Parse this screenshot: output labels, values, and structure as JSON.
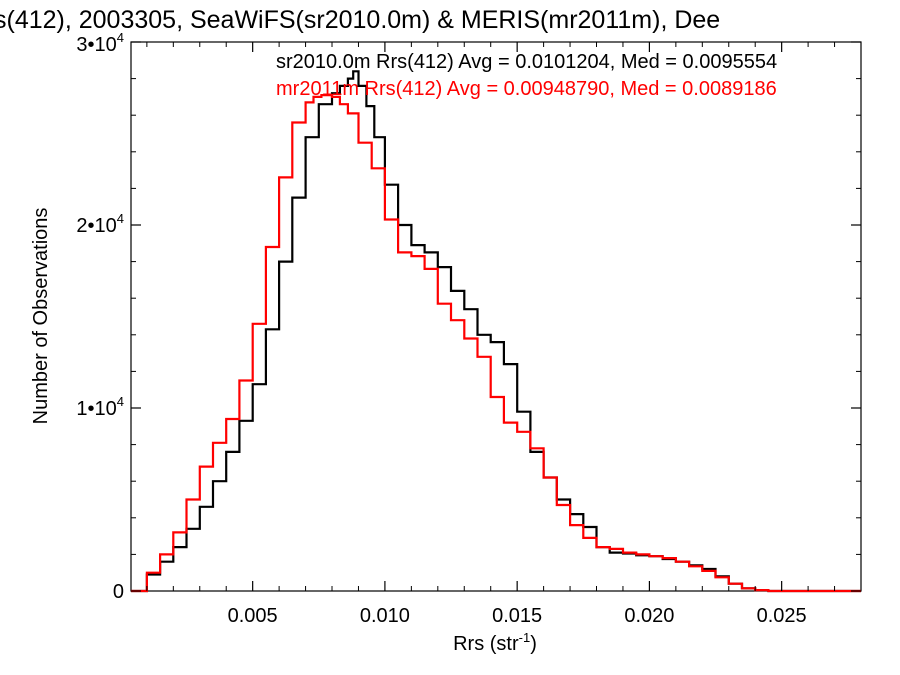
{
  "chart_data": {
    "type": "line",
    "title": "s(412), 2003305, SeaWiFS(sr2010.0m) & MERIS(mr2011m), Dee",
    "xlabel": "Rrs (str",
    "xlabel_sup": "-1",
    "xlabel_close": ")",
    "ylabel": "Number of Observations",
    "xlim": [
      0.0004,
      0.028
    ],
    "ylim": [
      0,
      30000
    ],
    "x_ticks": [
      {
        "value": 0.005,
        "label": "0.005"
      },
      {
        "value": 0.01,
        "label": "0.010"
      },
      {
        "value": 0.015,
        "label": "0.015"
      },
      {
        "value": 0.02,
        "label": "0.020"
      },
      {
        "value": 0.025,
        "label": "0.025"
      }
    ],
    "y_ticks": [
      {
        "value": 0,
        "mant": "0",
        "exp": ""
      },
      {
        "value": 10000,
        "mant": "1•10",
        "exp": "4"
      },
      {
        "value": 20000,
        "mant": "2•10",
        "exp": "4"
      },
      {
        "value": 30000,
        "mant": "3•10",
        "exp": "4"
      }
    ],
    "series": [
      {
        "name": "sr2010.0m",
        "legend": "sr2010.0m Rrs(412) Avg = 0.0101204, Med = 0.0095554",
        "color": "#000000",
        "x": [
          0.0004,
          0.001,
          0.0015,
          0.002,
          0.0025,
          0.003,
          0.0035,
          0.004,
          0.0045,
          0.005,
          0.0055,
          0.006,
          0.0065,
          0.007,
          0.0075,
          0.008,
          0.0083,
          0.0086,
          0.0088,
          0.009,
          0.0093,
          0.0096,
          0.01,
          0.0105,
          0.011,
          0.0115,
          0.012,
          0.0125,
          0.013,
          0.0135,
          0.014,
          0.0145,
          0.015,
          0.0155,
          0.016,
          0.0165,
          0.017,
          0.0175,
          0.018,
          0.0185,
          0.019,
          0.0195,
          0.02,
          0.0205,
          0.021,
          0.0215,
          0.022,
          0.0225,
          0.023,
          0.0235,
          0.024,
          0.0245,
          0.025,
          0.028
        ],
        "y": [
          0,
          900,
          1600,
          2400,
          3400,
          4600,
          6000,
          7600,
          9300,
          11300,
          14300,
          18000,
          21500,
          24800,
          26600,
          27200,
          27600,
          28000,
          28400,
          27600,
          26500,
          24800,
          22200,
          20000,
          18900,
          18500,
          17700,
          16400,
          15400,
          14000,
          13600,
          12400,
          9800,
          7600,
          6200,
          5000,
          4200,
          3500,
          2400,
          2100,
          2050,
          1950,
          1900,
          1750,
          1600,
          1400,
          1200,
          800,
          400,
          150,
          50,
          0,
          0,
          0
        ]
      },
      {
        "name": "mr2011m",
        "legend": "mr2011m Rrs(412) Avg = 0.00948790, Med = 0.0089186",
        "color": "#ff0000",
        "x": [
          0.0004,
          0.001,
          0.0015,
          0.002,
          0.0025,
          0.003,
          0.0035,
          0.004,
          0.0045,
          0.005,
          0.0055,
          0.006,
          0.0065,
          0.007,
          0.0073,
          0.0076,
          0.008,
          0.0083,
          0.0086,
          0.009,
          0.0095,
          0.01,
          0.0105,
          0.011,
          0.0115,
          0.012,
          0.0125,
          0.013,
          0.0135,
          0.014,
          0.0145,
          0.015,
          0.0155,
          0.016,
          0.0165,
          0.017,
          0.0175,
          0.018,
          0.0185,
          0.019,
          0.0195,
          0.02,
          0.0205,
          0.021,
          0.0215,
          0.022,
          0.0225,
          0.023,
          0.0235,
          0.024,
          0.0245,
          0.025,
          0.028
        ],
        "y": [
          0,
          1000,
          2000,
          3200,
          5000,
          6800,
          8100,
          9400,
          11500,
          14600,
          18800,
          22600,
          25600,
          26700,
          27000,
          27100,
          27000,
          26600,
          26100,
          24500,
          23100,
          20300,
          18500,
          18300,
          17600,
          15700,
          14800,
          13800,
          12800,
          10600,
          9200,
          8700,
          7800,
          6200,
          4700,
          3600,
          2900,
          2400,
          2300,
          2100,
          2000,
          1900,
          1800,
          1600,
          1350,
          1100,
          750,
          400,
          150,
          50,
          0,
          0,
          0
        ]
      }
    ]
  }
}
